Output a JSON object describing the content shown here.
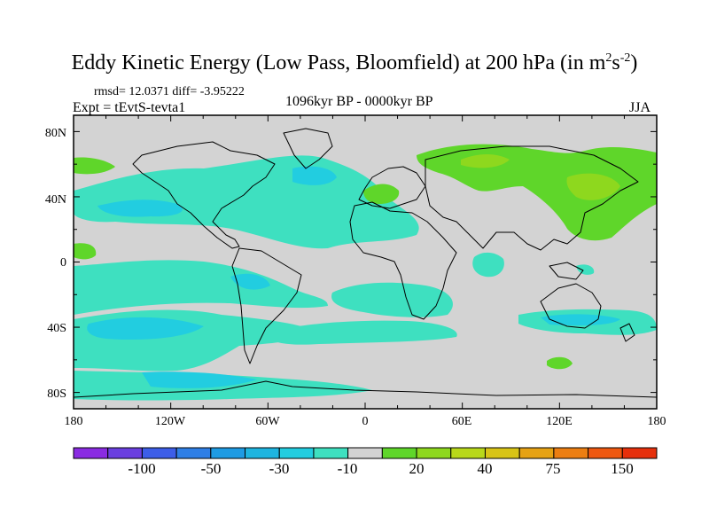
{
  "title": {
    "main": "Eddy Kinetic Energy (Low Pass, Bloomfield) at 200 hPa (in m",
    "sup1": "2",
    "mid": "s",
    "sup2": "-2",
    "end": ")"
  },
  "stats": "rmsd= 12.0371 diff= -3.95222",
  "expt": "Expt = tEvtS-tevta1",
  "period": "1096kyr BP - 0000kyr BP",
  "season": "JJA",
  "axes": {
    "lat_ticks": [
      "80N",
      "40N",
      "0",
      "40S",
      "80S"
    ],
    "lon_ticks": [
      "180",
      "120W",
      "60W",
      "0",
      "60E",
      "120E",
      "180"
    ]
  },
  "colorbar": {
    "colors": [
      "#8a2be2",
      "#6a3fe0",
      "#3d5ee8",
      "#2f7fe6",
      "#1e9be3",
      "#1eb5e0",
      "#22cde0",
      "#3ee0c0",
      "#d3d3d3",
      "#5fd62a",
      "#8ed81e",
      "#b8d81a",
      "#d8c416",
      "#e6a214",
      "#ec7e12",
      "#ee5810",
      "#e6300c"
    ],
    "labels": [
      "-100",
      "-50",
      "-30",
      "-10",
      "20",
      "40",
      "75",
      "150"
    ]
  },
  "palette": {
    "land_sea": "#d3d3d3",
    "cyan_light": "#22cde0",
    "cyan": "#3ee0c0",
    "green": "#5fd62a",
    "yellowgreen": "#8ed81e"
  }
}
